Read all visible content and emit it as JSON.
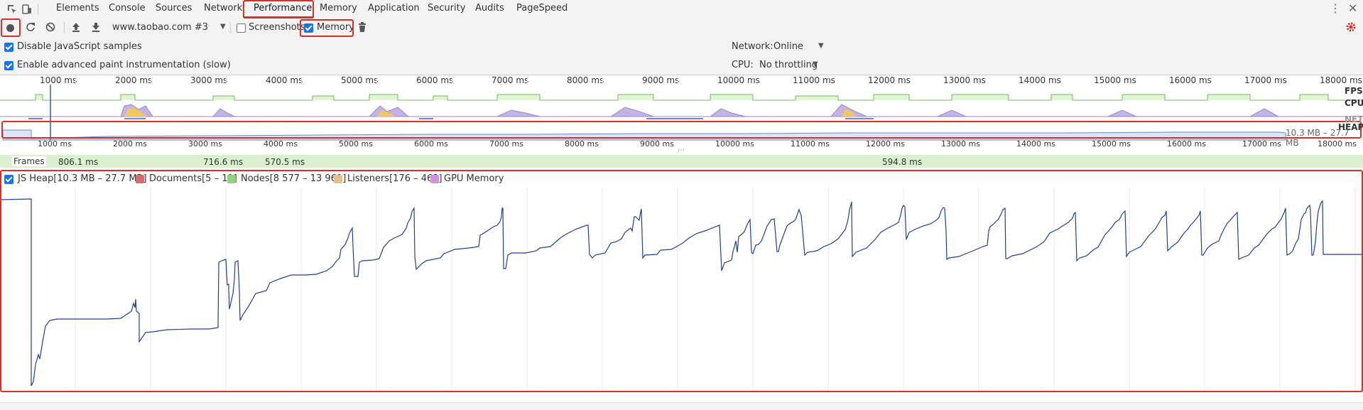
{
  "tabs": [
    "Elements",
    "Console",
    "Sources",
    "Network",
    "Performance",
    "Memory",
    "Application",
    "Security",
    "Audits",
    "PageSpeed"
  ],
  "toolbar": {
    "url_select": "www.taobao.com #3",
    "screenshots_label": "Screenshots",
    "screenshots_checked": false,
    "memory_label": "Memory",
    "memory_checked": true
  },
  "settings": {
    "disable_js_label": "Disable JavaScript samples",
    "enable_paint_label": "Enable advanced paint instrumentation (slow)",
    "network_label": "Network:",
    "network_value": "Online",
    "cpu_label": "CPU:",
    "cpu_value": "No throttling"
  },
  "overview": {
    "ticks": [
      "1000 ms",
      "2000 ms",
      "3000 ms",
      "4000 ms",
      "5000 ms",
      "6000 ms",
      "7000 ms",
      "8000 ms",
      "9000 ms",
      "10000 ms",
      "11000 ms",
      "12000 ms",
      "13000 ms",
      "14000 ms",
      "15000 ms",
      "16000 ms",
      "17000 ms",
      "18000 ms"
    ],
    "fps_label": "FPS",
    "cpu_label": "CPU",
    "net_label": "NET",
    "heap_label": "HEAP",
    "heap_range": "10.3 MB – 27.7 MB"
  },
  "frames": {
    "label": "Frames",
    "durations": [
      "806.1 ms",
      "716.6 ms",
      "570.5 ms",
      "594.8 ms"
    ]
  },
  "legend": {
    "items": [
      {
        "label": "JS Heap[10.3 MB – 27.7 MB]",
        "color": "#3c5b9c",
        "checked": true
      },
      {
        "label": "Documents[5 – 11]",
        "color": "#d66a6a",
        "checked": false
      },
      {
        "label": "Nodes[8 577 – 13 961]",
        "color": "#8fd47c",
        "checked": false
      },
      {
        "label": "Listeners[176 – 463]",
        "color": "#e8bf8c",
        "checked": false
      },
      {
        "label": "GPU Memory",
        "color": "#d38fe0",
        "checked": false
      }
    ]
  },
  "colors": {
    "accent": "#1a73e8",
    "highlight": "#d93025",
    "heap_line": "#1f3f8f"
  }
}
